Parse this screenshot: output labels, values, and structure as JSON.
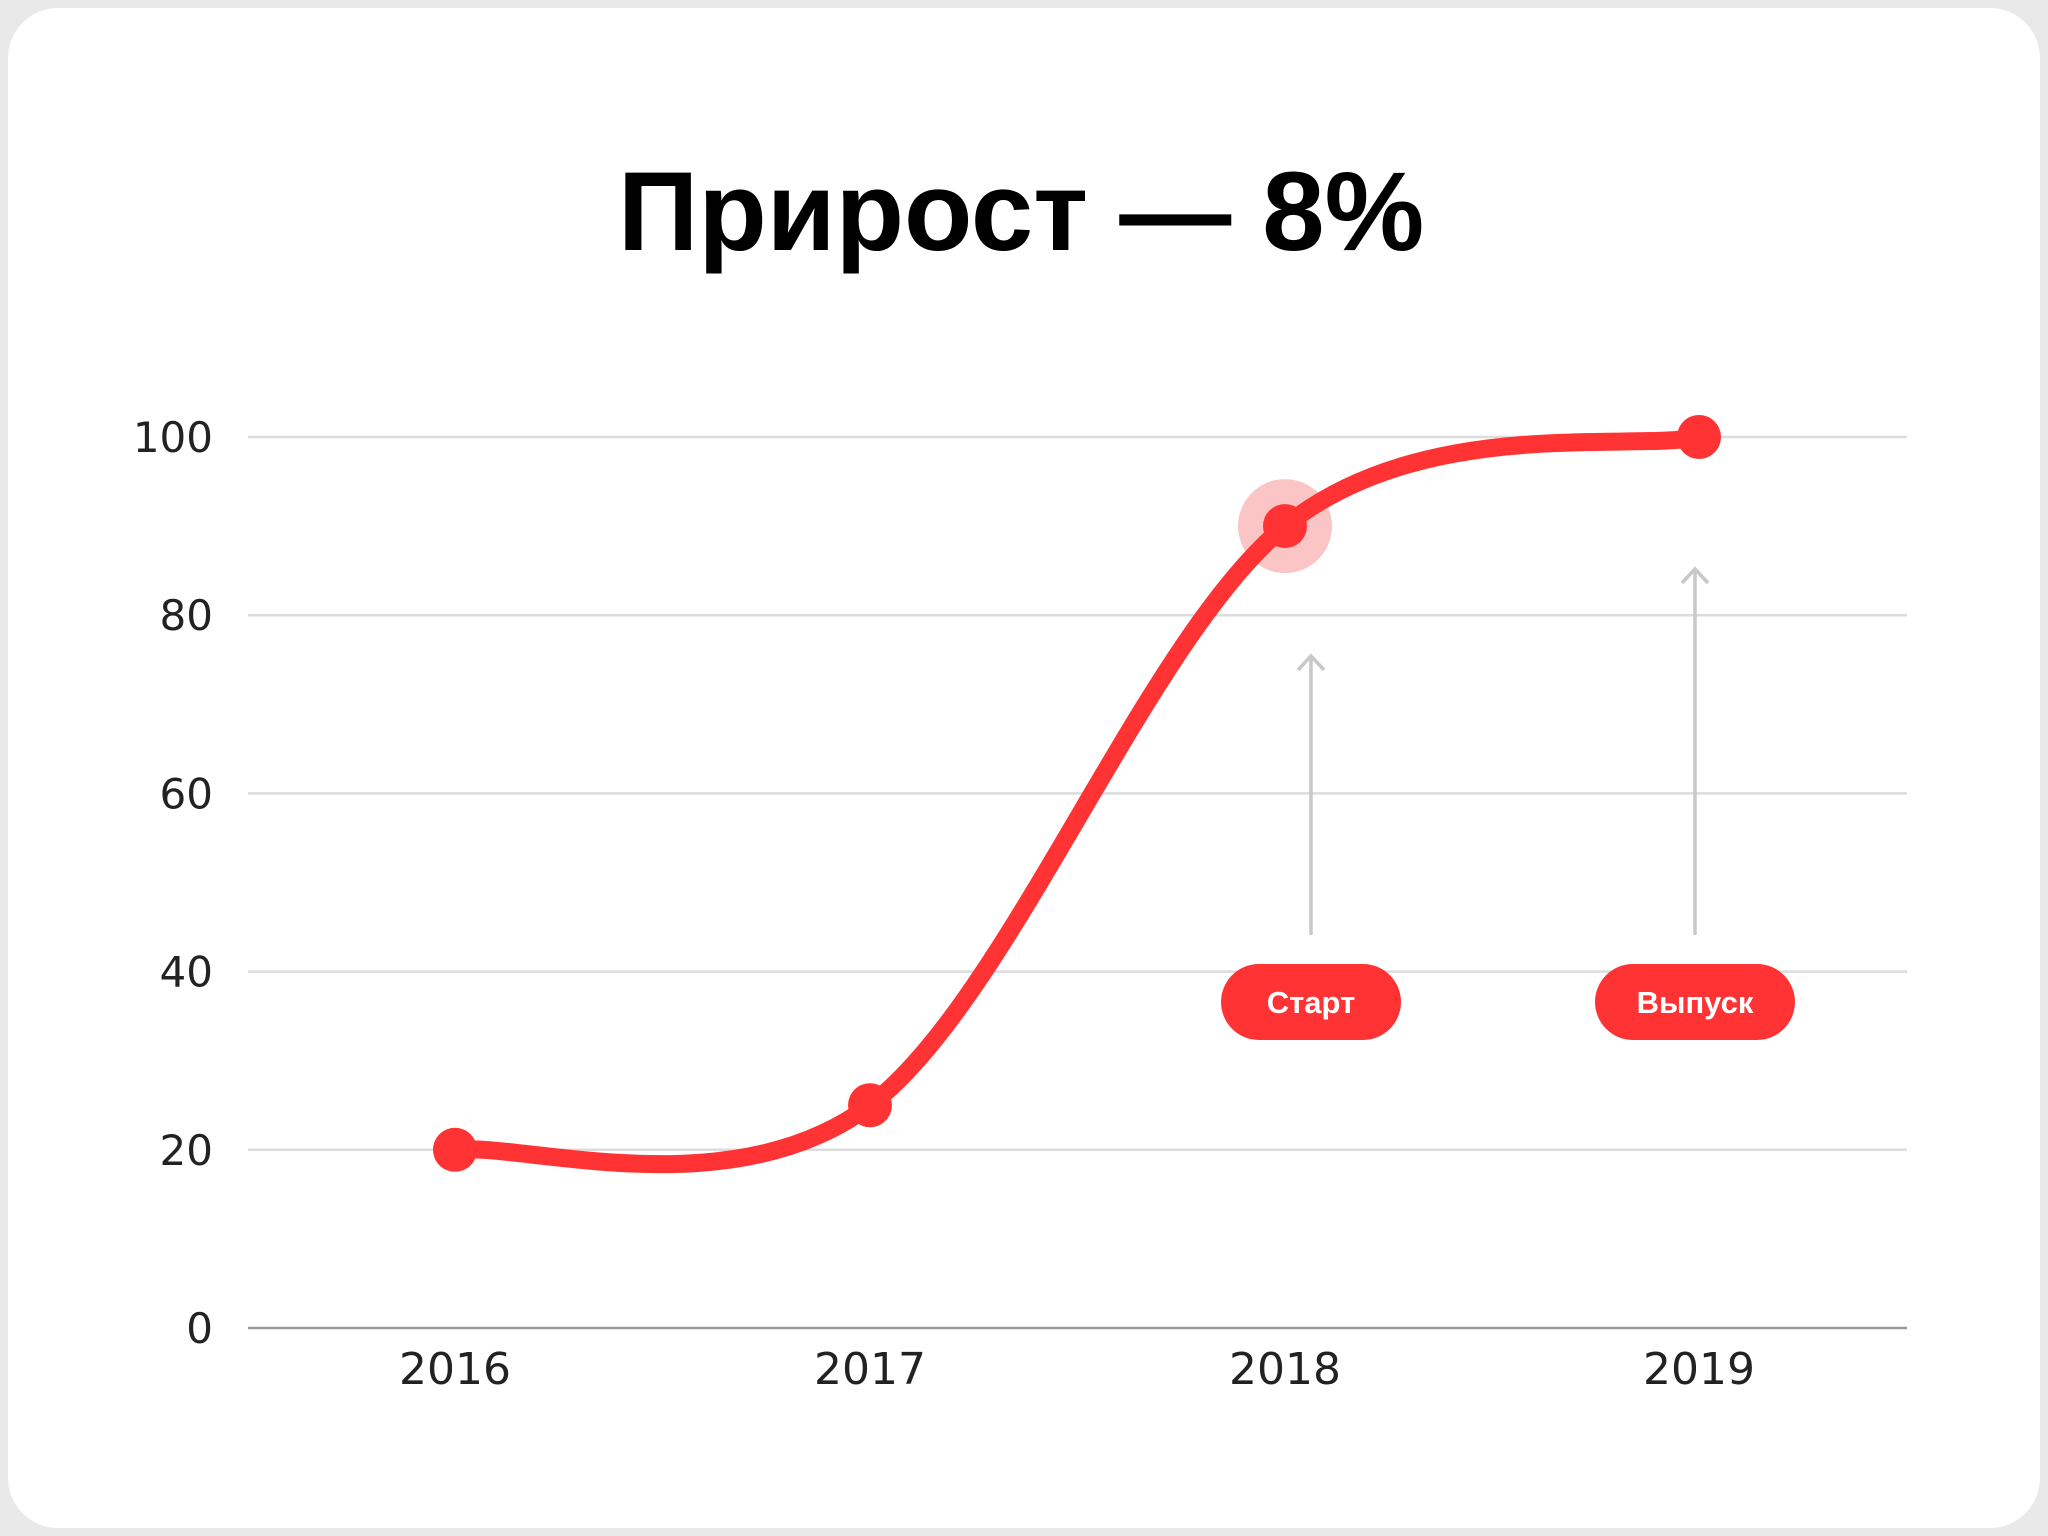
{
  "chart_data": {
    "type": "line",
    "title": "Прирост — 8%",
    "categories": [
      "2016",
      "2017",
      "2018",
      "2019"
    ],
    "values": [
      20,
      25,
      90,
      100
    ],
    "ylim": [
      0,
      100
    ],
    "yticks": [
      "0",
      "20",
      "40",
      "60",
      "80",
      "100"
    ],
    "xlabel": "",
    "ylabel": "",
    "grid": true,
    "highlighted_point": "2018",
    "annotations": [
      {
        "label": "Старт",
        "category": "2018"
      },
      {
        "label": "Выпуск",
        "category": "2019"
      }
    ],
    "colors": {
      "line": "#ff3333",
      "halo": "#fcc5c5",
      "grid": "#dcdcdc",
      "arrow": "#c8c8c8"
    }
  }
}
